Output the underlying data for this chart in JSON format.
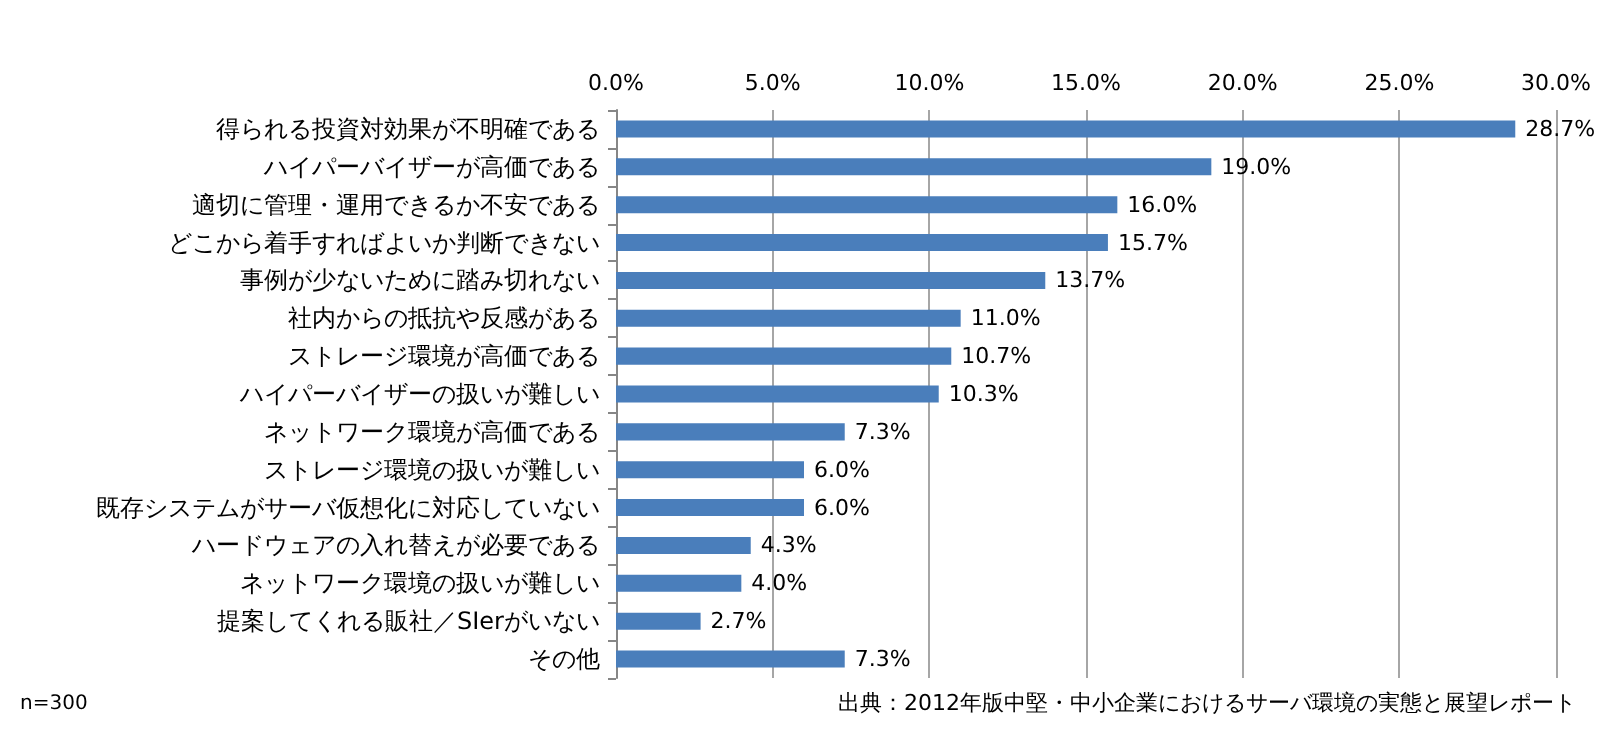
{
  "chart_data": {
    "type": "bar",
    "orientation": "horizontal",
    "categories": [
      "得られる投資対効果が不明確である",
      "ハイパーバイザーが高価である",
      "適切に管理・運用できるか不安である",
      "どこから着手すればよいか判断できない",
      "事例が少ないために踏み切れない",
      "社内からの抵抗や反感がある",
      "ストレージ環境が高価である",
      "ハイパーバイザーの扱いが難しい",
      "ネットワーク環境が高価である",
      "ストレージ環境の扱いが難しい",
      "既存システムがサーバ仮想化に対応していない",
      "ハードウェアの入れ替えが必要である",
      "ネットワーク環境の扱いが難しい",
      "提案してくれる販社／SIerがいない",
      "その他"
    ],
    "values": [
      28.7,
      19.0,
      16.0,
      15.7,
      13.7,
      11.0,
      10.7,
      10.3,
      7.3,
      6.0,
      6.0,
      4.3,
      4.0,
      2.7,
      7.3
    ],
    "value_labels": [
      "28.7%",
      "19.0%",
      "16.0%",
      "15.7%",
      "13.7%",
      "11.0%",
      "10.7%",
      "10.3%",
      "7.3%",
      "6.0%",
      "6.0%",
      "4.3%",
      "4.0%",
      "2.7%",
      "7.3%"
    ],
    "color": "#4a7ebb",
    "xlim": [
      0,
      30
    ],
    "xticks": [
      {
        "value": 0,
        "label": "0.0%"
      },
      {
        "value": 5,
        "label": "5.0%"
      },
      {
        "value": 10,
        "label": "10.0%"
      },
      {
        "value": 15,
        "label": "15.0%"
      },
      {
        "value": 20,
        "label": "20.0%"
      },
      {
        "value": 25,
        "label": "25.0%"
      },
      {
        "value": 30,
        "label": "30.0%"
      }
    ],
    "grid": "x",
    "annotations": [
      "n=300",
      "出典：2012年版中堅・中小企業におけるサーバ環境の実態と展望レポート"
    ]
  }
}
